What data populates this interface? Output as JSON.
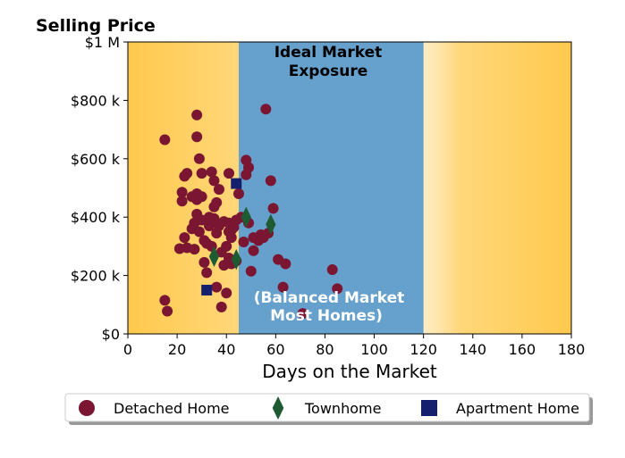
{
  "chart_data": {
    "type": "scatter",
    "title": "Selling Price",
    "xlabel": "Days on the Market",
    "ylabel": "Selling Price",
    "xlim": [
      0,
      180
    ],
    "ylim": [
      0,
      1000000
    ],
    "x_ticks": [
      0,
      20,
      40,
      60,
      80,
      100,
      120,
      140,
      160,
      180
    ],
    "x_tick_labels": [
      "0",
      "20",
      "40",
      "60",
      "80",
      "100",
      "120",
      "140",
      "160",
      "180"
    ],
    "y_ticks": [
      0,
      200000,
      400000,
      600000,
      800000,
      1000000
    ],
    "y_tick_labels": [
      "$0",
      "$200 k",
      "$400 k",
      "$600 k",
      "$800 k",
      "$1 M"
    ],
    "grid": false,
    "legend_position": "bottom",
    "background": {
      "gradient_color": "#ffc94d",
      "edge_color": "#ffffff"
    },
    "band": {
      "x_range": [
        45,
        120
      ],
      "color": "#66a0cc",
      "title_lines": [
        "Ideal Market",
        "Exposure"
      ],
      "note_lines": [
        "(Balanced Market",
        "Most Homes)"
      ]
    },
    "series": [
      {
        "name": "Detached Home",
        "marker": "circle",
        "color": "#7a1632",
        "points": [
          [
            15,
            665000
          ],
          [
            15,
            115000
          ],
          [
            16,
            78000
          ],
          [
            21,
            292000
          ],
          [
            22,
            485000
          ],
          [
            22,
            455000
          ],
          [
            23,
            540000
          ],
          [
            23,
            330000
          ],
          [
            24,
            550000
          ],
          [
            24,
            295000
          ],
          [
            26,
            470000
          ],
          [
            26,
            360000
          ],
          [
            27,
            290000
          ],
          [
            27,
            380000
          ],
          [
            28,
            750000
          ],
          [
            28,
            675000
          ],
          [
            28,
            480000
          ],
          [
            28,
            460000
          ],
          [
            28,
            410000
          ],
          [
            29,
            600000
          ],
          [
            29,
            350000
          ],
          [
            30,
            550000
          ],
          [
            30,
            470000
          ],
          [
            30,
            390000
          ],
          [
            31,
            320000
          ],
          [
            31,
            245000
          ],
          [
            32,
            210000
          ],
          [
            32,
            310000
          ],
          [
            33,
            370000
          ],
          [
            33,
            400000
          ],
          [
            34,
            555000
          ],
          [
            34,
            300000
          ],
          [
            35,
            525000
          ],
          [
            35,
            435000
          ],
          [
            35,
            395000
          ],
          [
            36,
            450000
          ],
          [
            36,
            345000
          ],
          [
            36,
            160000
          ],
          [
            37,
            495000
          ],
          [
            37,
            370000
          ],
          [
            38,
            280000
          ],
          [
            38,
            92000
          ],
          [
            39,
            385000
          ],
          [
            39,
            235000
          ],
          [
            40,
            300000
          ],
          [
            40,
            140000
          ],
          [
            41,
            550000
          ],
          [
            41,
            380000
          ],
          [
            41,
            350000
          ],
          [
            41,
            260000
          ],
          [
            42,
            355000
          ],
          [
            42,
            330000
          ],
          [
            42,
            240000
          ],
          [
            43,
            365000
          ],
          [
            44,
            390000
          ],
          [
            44,
            250000
          ],
          [
            45,
            480000
          ],
          [
            46,
            400000
          ],
          [
            47,
            315000
          ],
          [
            48,
            595000
          ],
          [
            48,
            545000
          ],
          [
            49,
            570000
          ],
          [
            49,
            380000
          ],
          [
            50,
            215000
          ],
          [
            51,
            330000
          ],
          [
            51,
            285000
          ],
          [
            53,
            320000
          ],
          [
            54,
            340000
          ],
          [
            55,
            330000
          ],
          [
            56,
            770000
          ],
          [
            57,
            345000
          ],
          [
            58,
            525000
          ],
          [
            59,
            430000
          ],
          [
            61,
            255000
          ],
          [
            63,
            160000
          ],
          [
            64,
            240000
          ],
          [
            71,
            70000
          ],
          [
            83,
            220000
          ],
          [
            85,
            155000
          ]
        ]
      },
      {
        "name": "Townhome",
        "marker": "diamond",
        "color": "#1e5a32",
        "points": [
          [
            35,
            265000
          ],
          [
            44,
            255000
          ],
          [
            48,
            400000
          ],
          [
            58,
            375000
          ]
        ]
      },
      {
        "name": "Apartment Home",
        "marker": "square",
        "color": "#14206e",
        "points": [
          [
            32,
            150000
          ],
          [
            44,
            515000
          ]
        ]
      }
    ]
  }
}
